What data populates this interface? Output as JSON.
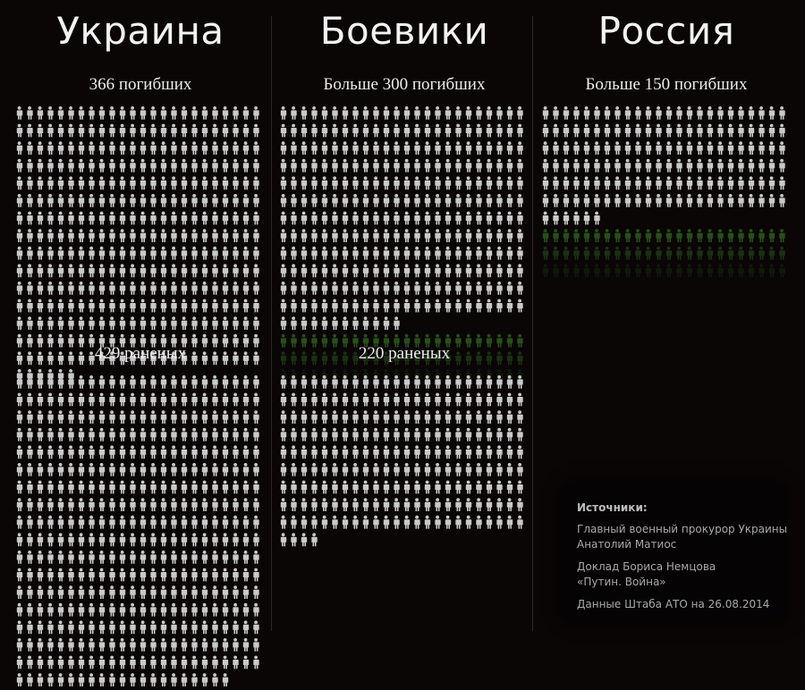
{
  "columns": [
    {
      "id": "ukraine",
      "title": "Украина",
      "killed_label": "366 погибших",
      "wounded_label": "429 раненых",
      "killed": 366,
      "wounded": 429
    },
    {
      "id": "militants",
      "title": "Боевики",
      "killed_label": "Больше 300 погибших",
      "wounded_label": "220 раненых",
      "killed": 300,
      "killed_fading_rows": 3,
      "wounded": 220
    },
    {
      "id": "russia",
      "title": "Россия",
      "killed_label": "Больше 150 погибших",
      "killed": 150,
      "killed_fading_rows": 3
    }
  ],
  "colors": {
    "background": "#090605",
    "figure": "#c9c9c9",
    "figure_uncertain": "#2e5b1f",
    "text": "#eeeeee"
  },
  "icon": "person-icon",
  "sources": {
    "title": "Источники:",
    "items": [
      {
        "lines": [
          "Главный военный прокурор Украины",
          "Анатолий Матиос"
        ]
      },
      {
        "lines": [
          "Доклад Бориса Немцова",
          "«Путин. Война»"
        ]
      },
      {
        "lines": [
          "Данные Штаба АТО на 26.08.2014"
        ]
      }
    ]
  }
}
